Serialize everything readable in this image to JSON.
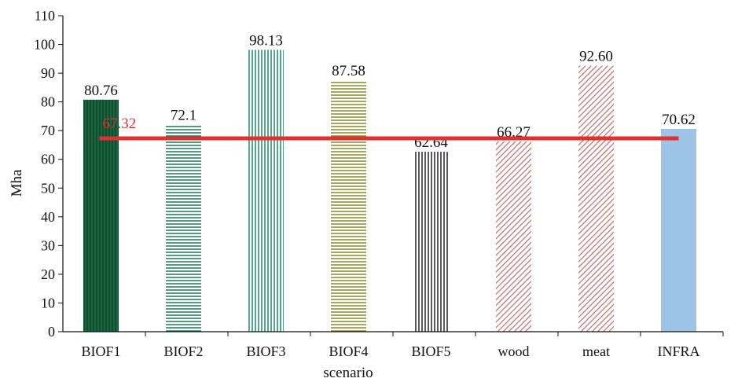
{
  "chart_data": {
    "type": "bar",
    "xlabel": "scenario",
    "ylabel": "Mha",
    "ylim": [
      0,
      110
    ],
    "yticks": [
      0,
      10,
      20,
      30,
      40,
      50,
      60,
      70,
      80,
      90,
      100,
      110
    ],
    "categories": [
      "BIOF1",
      "BIOF2",
      "BIOF3",
      "BIOF4",
      "BIOF5",
      "wood",
      "meat",
      "INFRA"
    ],
    "values": [
      80.76,
      72.1,
      98.13,
      87.58,
      62.64,
      66.27,
      92.6,
      70.62
    ],
    "value_labels": [
      "80.76",
      "72.1",
      "98.13",
      "87.58",
      "62.64",
      "66.27",
      "92.60",
      "70.62"
    ],
    "bar_styles": [
      {
        "pattern": "vertical",
        "color": "#1f6b45",
        "background": "#0f4f2f"
      },
      {
        "pattern": "horizontal",
        "color": "#1a7a55",
        "background": "#ffffff"
      },
      {
        "pattern": "vertical",
        "color": "#1c8a62",
        "background": "#ffffff"
      },
      {
        "pattern": "horizontal",
        "color": "#8a8a2a",
        "background": "#ffffff"
      },
      {
        "pattern": "vertical",
        "color": "#222222",
        "background": "#ffffff"
      },
      {
        "pattern": "diagonal",
        "color": "#c26a6a",
        "background": "#ffffff"
      },
      {
        "pattern": "diagonal",
        "color": "#c26a6a",
        "background": "#ffffff"
      },
      {
        "pattern": "solid",
        "color": "#9dc3e6",
        "background": "#9dc3e6"
      }
    ],
    "reference_line": {
      "value": 67.32,
      "label": "67.32",
      "color": "#e03030"
    },
    "grid": false
  }
}
